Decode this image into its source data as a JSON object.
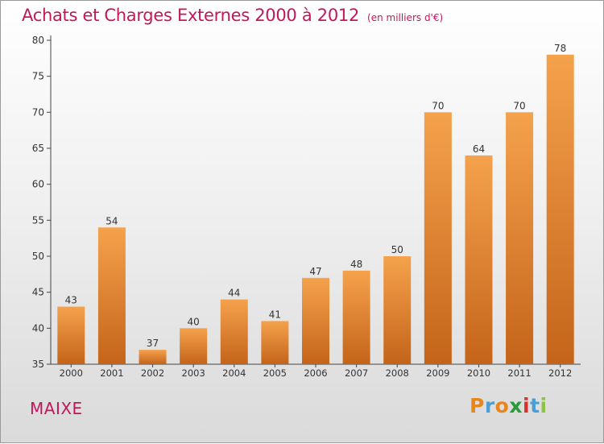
{
  "title": "Achats et Charges Externes 2000 à 2012",
  "unit_note": "(en milliers d'€)",
  "location": "MAIXE",
  "logo": {
    "text": "Proxiti",
    "colors": [
      "#e8861c",
      "#4a9fd8",
      "#e8861c",
      "#2a9a3a",
      "#d8322a",
      "#4a9fd8",
      "#8bc43f"
    ]
  },
  "colors": {
    "title": "#c2185b",
    "bar_light": "#f5a24c",
    "bar_dark": "#c4641a",
    "axis": "#444444"
  },
  "chart_data": {
    "type": "bar",
    "categories": [
      "2000",
      "2001",
      "2002",
      "2003",
      "2004",
      "2005",
      "2006",
      "2007",
      "2008",
      "2009",
      "2010",
      "2011",
      "2012"
    ],
    "values": [
      43,
      54,
      37,
      40,
      44,
      41,
      47,
      48,
      50,
      70,
      64,
      70,
      78
    ],
    "ylim": [
      35,
      80
    ],
    "yticks": [
      35,
      40,
      45,
      50,
      55,
      60,
      65,
      70,
      75,
      80
    ],
    "data_labels": true,
    "grid": false,
    "xlabel": "",
    "ylabel": ""
  }
}
